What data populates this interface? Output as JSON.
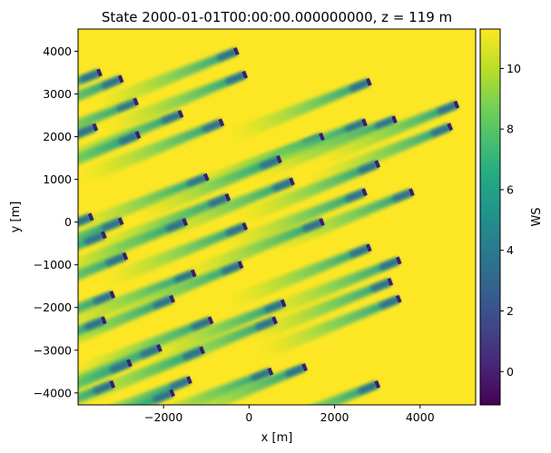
{
  "chart_data": {
    "type": "heatmap",
    "title": "State 2000-01-01T00:00:00.000000000, z =  119 m",
    "xlabel": "x [m]",
    "ylabel": "y [m]",
    "colorbar_label": "WS",
    "xlim": [
      -4000,
      5300
    ],
    "ylim": [
      -4280,
      4520
    ],
    "clim": [
      -1.1,
      11.3
    ],
    "x_ticks": [
      -2000,
      0,
      2000,
      4000
    ],
    "x_tick_labels": [
      "−2000",
      "0",
      "2000",
      "4000"
    ],
    "y_ticks": [
      -4000,
      -3000,
      -2000,
      -1000,
      0,
      1000,
      2000,
      3000,
      4000
    ],
    "y_tick_labels": [
      "−4000",
      "−3000",
      "−2000",
      "−1000",
      "0",
      "1000",
      "2000",
      "3000",
      "4000"
    ],
    "colorbar_ticks": [
      0,
      2,
      4,
      6,
      8,
      10
    ],
    "colorbar_tick_labels": [
      "0",
      "2",
      "4",
      "6",
      "8",
      "10"
    ],
    "colormap": "viridis",
    "freestream_ws": 11,
    "wind_direction_vector": [
      -0.93,
      -0.37
    ],
    "turbines": [
      [
        -3500,
        3500
      ],
      [
        -3000,
        3350
      ],
      [
        -2650,
        2820
      ],
      [
        -1600,
        2530
      ],
      [
        -650,
        2330
      ],
      [
        -300,
        4000
      ],
      [
        -100,
        3450
      ],
      [
        -3600,
        2220
      ],
      [
        -2600,
        2040
      ],
      [
        2800,
        3280
      ],
      [
        1700,
        2000
      ],
      [
        2700,
        2330
      ],
      [
        3400,
        2400
      ],
      [
        4850,
        2750
      ],
      [
        4700,
        2230
      ],
      [
        -1000,
        1050
      ],
      [
        700,
        1470
      ],
      [
        1000,
        950
      ],
      [
        3000,
        1360
      ],
      [
        -500,
        580
      ],
      [
        2700,
        700
      ],
      [
        3800,
        700
      ],
      [
        -3700,
        120
      ],
      [
        -3000,
        20
      ],
      [
        -1500,
        0
      ],
      [
        -100,
        -100
      ],
      [
        1700,
        0
      ],
      [
        -3400,
        -300
      ],
      [
        -2900,
        -800
      ],
      [
        2800,
        -600
      ],
      [
        3500,
        -900
      ],
      [
        -1300,
        -1200
      ],
      [
        -200,
        -1000
      ],
      [
        -3200,
        -1700
      ],
      [
        -1800,
        -1800
      ],
      [
        3300,
        -1400
      ],
      [
        800,
        -1900
      ],
      [
        3500,
        -1800
      ],
      [
        -3400,
        -2300
      ],
      [
        -900,
        -2300
      ],
      [
        600,
        -2300
      ],
      [
        -2100,
        -2950
      ],
      [
        -1100,
        -3000
      ],
      [
        -2800,
        -3300
      ],
      [
        -1400,
        -3700
      ],
      [
        500,
        -3500
      ],
      [
        1300,
        -3400
      ],
      [
        -3200,
        -3800
      ],
      [
        3000,
        -3800
      ],
      [
        -1800,
        -4000
      ]
    ]
  }
}
